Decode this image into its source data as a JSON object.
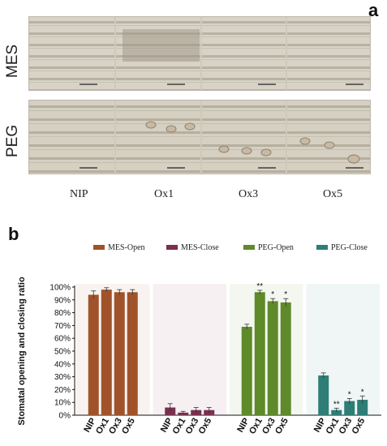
{
  "figure": {
    "panel_a_label": "a",
    "panel_b_label": "b",
    "rows": [
      "MES",
      "PEG"
    ],
    "treatments": [
      "NIP",
      "Ox1",
      "Ox3",
      "Ox5"
    ]
  },
  "chart_data": {
    "type": "bar",
    "title": "",
    "xlabel": "",
    "ylabel": "Stomatal opening and closing ratio",
    "ylim": [
      0,
      100
    ],
    "yticks": [
      "0%",
      "10%",
      "20%",
      "30%",
      "40%",
      "50%",
      "60%",
      "70%",
      "80%",
      "90%",
      "100%"
    ],
    "legend_position": "top",
    "categories": [
      "NIP",
      "Ox1",
      "Ox3",
      "Ox5"
    ],
    "series": [
      {
        "name": "MES-Open",
        "color": "#a0532a",
        "values": [
          94,
          98,
          96,
          96
        ],
        "errors": [
          3,
          1.5,
          2,
          2
        ],
        "significance": [
          "",
          "",
          "",
          ""
        ]
      },
      {
        "name": "MES-Close",
        "color": "#7a2f4e",
        "values": [
          6,
          2,
          4,
          4
        ],
        "errors": [
          3,
          1,
          2,
          2
        ],
        "significance": [
          "",
          "",
          "",
          ""
        ]
      },
      {
        "name": "PEG-Open",
        "color": "#5f8a2a",
        "values": [
          69,
          96,
          89,
          88
        ],
        "errors": [
          2,
          1.5,
          2,
          3
        ],
        "significance": [
          "",
          "**",
          "*",
          "*"
        ]
      },
      {
        "name": "PEG-Close",
        "color": "#2e7d76",
        "values": [
          31,
          4,
          11,
          12
        ],
        "errors": [
          2,
          1.5,
          2,
          3
        ],
        "significance": [
          "",
          "**",
          "*",
          "*"
        ]
      }
    ]
  }
}
